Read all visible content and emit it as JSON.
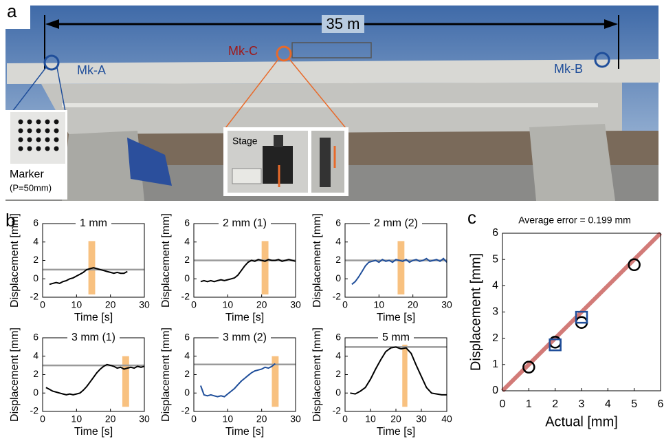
{
  "panel_labels": [
    "a",
    "b",
    "c"
  ],
  "photo": {
    "span": "35 m",
    "markers": [
      "Mk-A",
      "Mk-C",
      "Mk-B"
    ],
    "marker_inset": "Marker",
    "marker_pitch": "(P=50mm)",
    "stage": "Stage"
  },
  "chart_data": [
    {
      "type": "line",
      "title": "1 mm",
      "xlabel": "Time [s]",
      "ylabel": "Displacement [mm]",
      "color": "#000000",
      "x": [
        2,
        3,
        4,
        5,
        6,
        7,
        8,
        9,
        10,
        11,
        12,
        13,
        14,
        15,
        16,
        17,
        18,
        19,
        20,
        21,
        22,
        23,
        24,
        25
      ],
      "values": [
        -0.6,
        -0.5,
        -0.4,
        -0.5,
        -0.3,
        -0.2,
        0,
        0.1,
        0.3,
        0.5,
        0.7,
        1.0,
        1.1,
        1.2,
        1.1,
        1.0,
        0.9,
        0.8,
        0.7,
        0.6,
        0.7,
        0.6,
        0.6,
        0.8
      ],
      "reference": 1,
      "highlight_x": [
        13.5,
        15.5
      ],
      "highlight_y": [
        -1.7,
        4.1
      ],
      "xlim": [
        0,
        30
      ],
      "ylim": [
        -2,
        6
      ],
      "xticks": [
        0,
        10,
        20,
        30
      ],
      "yticks": [
        -2,
        0,
        2,
        4,
        6
      ]
    },
    {
      "type": "line",
      "title": "2 mm (1)",
      "xlabel": "Time [s]",
      "ylabel": "Displacement [mm]",
      "color": "#000000",
      "x": [
        2,
        3,
        4,
        5,
        6,
        7,
        8,
        9,
        10,
        11,
        12,
        13,
        14,
        15,
        16,
        17,
        18,
        19,
        20,
        21,
        22,
        23,
        24,
        25,
        26,
        27,
        28,
        29,
        30
      ],
      "values": [
        -0.3,
        -0.2,
        -0.3,
        -0.2,
        -0.3,
        -0.2,
        -0.1,
        -0.2,
        -0.1,
        0,
        0.1,
        0.4,
        0.9,
        1.4,
        1.8,
        2.0,
        1.9,
        2.1,
        2.0,
        1.9,
        2.1,
        2.0,
        2.0,
        2.1,
        1.9,
        2.0,
        2.1,
        2.0,
        1.9
      ],
      "reference": 2,
      "highlight_x": [
        20,
        22
      ],
      "highlight_y": [
        -1.7,
        4.1
      ],
      "xlim": [
        0,
        30
      ],
      "ylim": [
        -2,
        6
      ],
      "xticks": [
        0,
        10,
        20,
        30
      ],
      "yticks": [
        -2,
        0,
        2,
        4,
        6
      ]
    },
    {
      "type": "line",
      "title": "2 mm (2)",
      "xlabel": "Time [s]",
      "ylabel": "Displacement [mm]",
      "color": "#1f4e9a",
      "x": [
        2,
        3,
        4,
        5,
        6,
        7,
        8,
        9,
        10,
        11,
        12,
        13,
        14,
        15,
        16,
        17,
        18,
        19,
        20,
        21,
        22,
        23,
        24,
        25,
        26,
        27,
        28,
        29,
        30
      ],
      "values": [
        -0.6,
        -0.3,
        0.2,
        0.8,
        1.4,
        1.8,
        1.9,
        2.0,
        1.8,
        2.1,
        1.9,
        2.0,
        1.8,
        2.1,
        2.0,
        1.9,
        2.1,
        1.8,
        2.0,
        2.1,
        1.9,
        2.0,
        2.2,
        1.9,
        2.0,
        2.1,
        1.9,
        2.2,
        1.8
      ],
      "reference": 2,
      "highlight_x": [
        15.5,
        17.5
      ],
      "highlight_y": [
        -1.7,
        4.1
      ],
      "xlim": [
        0,
        30
      ],
      "ylim": [
        -2,
        6
      ],
      "xticks": [
        0,
        10,
        20,
        30
      ],
      "yticks": [
        -2,
        0,
        2,
        4,
        6
      ]
    },
    {
      "type": "line",
      "title": "3 mm (1)",
      "xlabel": "Time [s]",
      "ylabel": "Displacement [mm]",
      "color": "#000000",
      "x": [
        1,
        2,
        3,
        4,
        5,
        6,
        7,
        8,
        9,
        10,
        11,
        12,
        13,
        14,
        15,
        16,
        17,
        18,
        19,
        20,
        21,
        22,
        23,
        24,
        25,
        26,
        27,
        28,
        29,
        30
      ],
      "values": [
        0.6,
        0.4,
        0.2,
        0.1,
        0,
        -0.1,
        -0.2,
        -0.1,
        -0.2,
        -0.1,
        0,
        0.3,
        0.7,
        1.2,
        1.7,
        2.2,
        2.6,
        2.9,
        3.1,
        3.0,
        2.9,
        2.7,
        2.8,
        2.6,
        2.7,
        2.8,
        2.7,
        2.9,
        2.8,
        2.9
      ],
      "reference": 3,
      "highlight_x": [
        23.5,
        25.5
      ],
      "highlight_y": [
        -1.5,
        4
      ],
      "xlim": [
        0,
        30
      ],
      "ylim": [
        -2,
        6
      ],
      "xticks": [
        0,
        10,
        20,
        30
      ],
      "yticks": [
        -2,
        0,
        2,
        4,
        6
      ]
    },
    {
      "type": "line",
      "title": "3 mm (2)",
      "xlabel": "Time [s]",
      "ylabel": "Displacement [mm]",
      "color": "#1f4e9a",
      "x": [
        2,
        3,
        4,
        5,
        6,
        7,
        8,
        9,
        10,
        11,
        12,
        13,
        14,
        15,
        16,
        17,
        18,
        19,
        20,
        21,
        22,
        23,
        24
      ],
      "values": [
        0.8,
        -0.2,
        -0.3,
        -0.2,
        -0.3,
        -0.4,
        -0.3,
        -0.4,
        -0.1,
        0.2,
        0.5,
        0.9,
        1.3,
        1.6,
        1.9,
        2.2,
        2.4,
        2.5,
        2.6,
        2.8,
        2.7,
        2.9,
        3.2
      ],
      "reference": 3.1,
      "highlight_x": [
        23,
        25
      ],
      "highlight_y": [
        -1.5,
        4
      ],
      "xlim": [
        0,
        30
      ],
      "ylim": [
        -2,
        6
      ],
      "xticks": [
        0,
        10,
        20,
        30
      ],
      "yticks": [
        -2,
        0,
        2,
        4,
        6
      ]
    },
    {
      "type": "line",
      "title": "5 mm",
      "xlabel": "Time [s]",
      "ylabel": "Displacement [mm]",
      "color": "#000000",
      "x": [
        2,
        4,
        6,
        8,
        10,
        12,
        14,
        16,
        18,
        20,
        22,
        24,
        26,
        28,
        30,
        32,
        34,
        36,
        38,
        40
      ],
      "values": [
        0,
        -0.1,
        0.2,
        0.6,
        1.5,
        2.6,
        3.6,
        4.5,
        4.9,
        5.0,
        4.8,
        4.9,
        4.3,
        3.0,
        1.8,
        0.6,
        0,
        -0.1,
        -0.2,
        -0.2
      ],
      "reference": 5,
      "highlight_x": [
        22.5,
        24.5
      ],
      "highlight_y": [
        -1.5,
        6
      ],
      "xlim": [
        0,
        40
      ],
      "ylim": [
        -2,
        6
      ],
      "xticks": [
        0,
        10,
        20,
        30,
        40
      ],
      "yticks": [
        -2,
        0,
        2,
        4,
        6
      ]
    },
    {
      "type": "scatter",
      "title": "Average error = 0.199 mm",
      "xlabel": "Actual [mm]",
      "ylabel": "Displacement [mm]",
      "series": [
        {
          "marker": "circle",
          "color": "#000000",
          "x": [
            1,
            2,
            3,
            5
          ],
          "values": [
            0.9,
            1.85,
            2.6,
            4.8
          ]
        },
        {
          "marker": "square",
          "color": "#1f4e9a",
          "x": [
            2,
            3
          ],
          "values": [
            1.75,
            2.8
          ]
        }
      ],
      "fit": {
        "color": "#d27b78",
        "x": [
          0,
          6
        ],
        "values": [
          0,
          6
        ]
      },
      "xlim": [
        0,
        6
      ],
      "ylim": [
        0,
        6
      ],
      "xticks": [
        0,
        1,
        2,
        3,
        4,
        5,
        6
      ],
      "yticks": [
        0,
        1,
        2,
        3,
        4,
        5,
        6
      ]
    }
  ]
}
